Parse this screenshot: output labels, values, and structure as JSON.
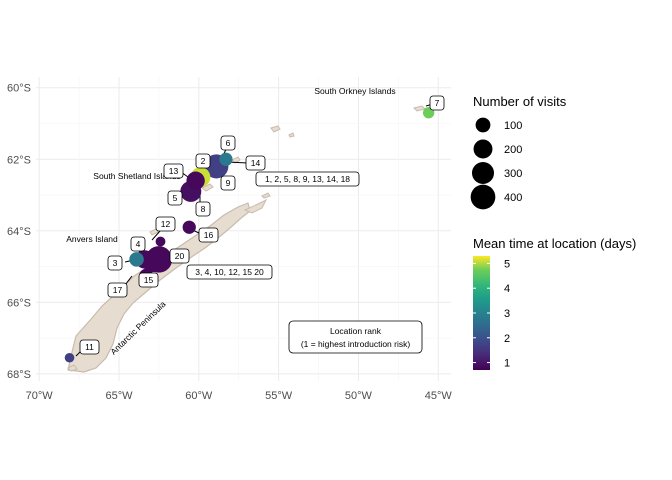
{
  "chart_data": {
    "type": "scatter",
    "title": "",
    "xlabel": "",
    "ylabel": "",
    "xlim": [
      -70.2,
      -44.2
    ],
    "ylim": [
      -68.2,
      -59.7
    ],
    "x_ticks": [
      -70,
      -65,
      -60,
      -55,
      -50,
      -45
    ],
    "x_tick_labels": [
      "70°W",
      "65°W",
      "60°W",
      "55°W",
      "50°W",
      "45°W"
    ],
    "y_ticks": [
      -60,
      -62,
      -64,
      -66,
      -68
    ],
    "y_tick_labels": [
      "60°S",
      "62°S",
      "64°S",
      "66°S",
      "68°S"
    ],
    "grid": true,
    "legend_position": "right",
    "size_legend": {
      "title": "Number of visits",
      "values": [
        100,
        200,
        300,
        400
      ],
      "labels": [
        "100",
        "200",
        "300",
        "400"
      ]
    },
    "color_legend": {
      "title": "Mean time at location (days)",
      "ticks": [
        1,
        2,
        3,
        4,
        5
      ],
      "labels": [
        "1",
        "2",
        "3",
        "4",
        "5"
      ],
      "range": [
        0.7,
        5.3
      ],
      "palette": "viridis"
    },
    "points": [
      {
        "x": -62.5,
        "y": -64.8,
        "visits": 420,
        "days": 0.8
      },
      {
        "x": -62.9,
        "y": -64.85,
        "visits": 260,
        "days": 0.8
      },
      {
        "x": -63.4,
        "y": -64.8,
        "visits": 160,
        "days": 0.8
      },
      {
        "x": -63.9,
        "y": -64.8,
        "visits": 80,
        "days": 2.8
      },
      {
        "x": -60.5,
        "y": -62.9,
        "visits": 230,
        "days": 0.9
      },
      {
        "x": -59.9,
        "y": -62.5,
        "visits": 200,
        "days": 5.1
      },
      {
        "x": -60.2,
        "y": -62.6,
        "visits": 160,
        "days": 0.8
      },
      {
        "x": -58.9,
        "y": -62.2,
        "visits": 330,
        "days": 1.7
      },
      {
        "x": -58.3,
        "y": -62.0,
        "visits": 60,
        "days": 2.8
      },
      {
        "x": -60.6,
        "y": -63.9,
        "visits": 60,
        "days": 0.8
      },
      {
        "x": -63.3,
        "y": -65.25,
        "visits": 65,
        "days": 0.8
      },
      {
        "x": -62.4,
        "y": -64.3,
        "visits": 20,
        "days": 0.8
      },
      {
        "x": -45.6,
        "y": -60.7,
        "visits": 35,
        "days": 4.7
      },
      {
        "x": -68.1,
        "y": -67.55,
        "visits": 18,
        "days": 1.7
      }
    ],
    "annotations": {
      "place_names": [
        "South Orkney Islands",
        "South Shetland Islands",
        "Anvers Island",
        "Antarctic Peninsula"
      ],
      "rank_labels": [
        "1, 2, 5, 8, 9, 13, 14, 18",
        "3, 4, 10, 12, 15 20",
        "2",
        "4",
        "3",
        "5",
        "6",
        "7",
        "8",
        "9",
        "11",
        "12",
        "13",
        "14",
        "15",
        "16",
        "17",
        "20"
      ],
      "box_title": "Location rank",
      "box_subtitle": "(1 = highest introduction risk)"
    }
  }
}
